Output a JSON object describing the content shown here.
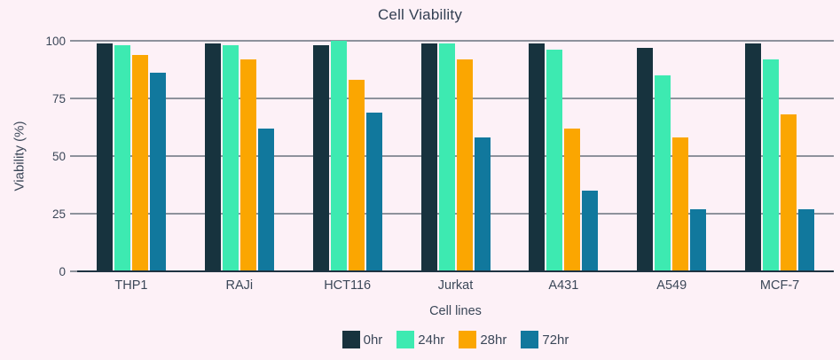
{
  "title": "Cell Viability",
  "colors": {
    "background": "#fdf1f7",
    "gridline": "#1e3342",
    "text": "#3b4758",
    "title_text": "#323f52"
  },
  "chart_data": {
    "type": "bar",
    "title": "Cell Viability",
    "xlabel": "Cell lines",
    "ylabel": "Viability (%)",
    "categories": [
      "THP1",
      "RAJi",
      "HCT116",
      "Jurkat",
      "A431",
      "A549",
      "MCF-7"
    ],
    "series": [
      {
        "name": "0hr",
        "color": "#17333e",
        "values": [
          99,
          99,
          98,
          99,
          99,
          97,
          99
        ]
      },
      {
        "name": "24hr",
        "color": "#3deab1",
        "values": [
          98,
          98,
          100,
          99,
          96,
          85,
          92
        ]
      },
      {
        "name": "28hr",
        "color": "#fba601",
        "values": [
          94,
          92,
          83,
          92,
          62,
          58,
          68
        ]
      },
      {
        "name": "72hr",
        "color": "#11789d",
        "values": [
          86,
          62,
          69,
          58,
          35,
          27,
          27
        ]
      }
    ],
    "ylim": [
      0,
      100
    ],
    "yticks": [
      0,
      25,
      50,
      75,
      100
    ],
    "grid": true,
    "legend_position": "bottom"
  }
}
